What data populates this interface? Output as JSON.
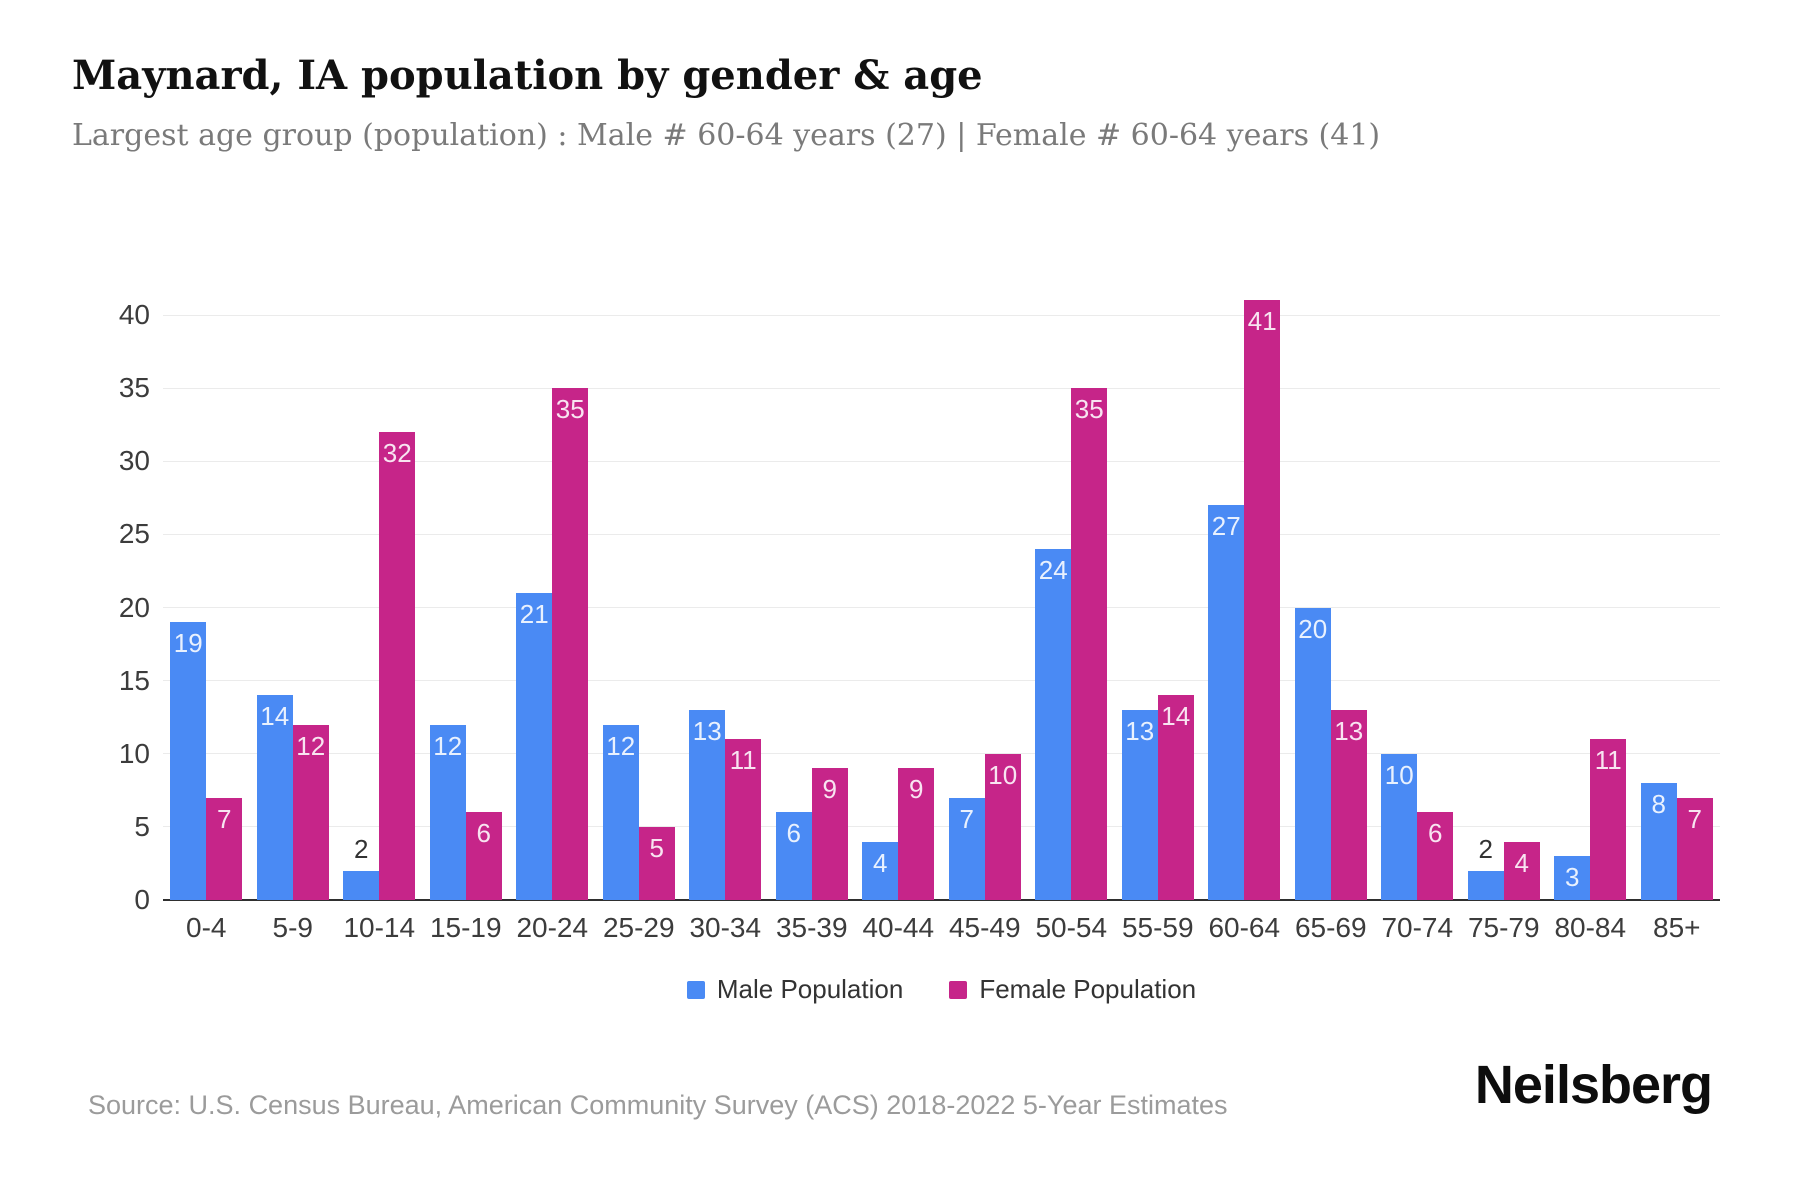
{
  "header": {
    "title": "Maynard, IA population by gender & age",
    "subtitle": "Largest age group (population) : Male # 60-64 years (27) | Female # 60-64 years (41)"
  },
  "chart_data": {
    "type": "bar",
    "title": "Maynard, IA population by gender & age",
    "categories": [
      "0-4",
      "5-9",
      "10-14",
      "15-19",
      "20-24",
      "25-29",
      "30-34",
      "35-39",
      "40-44",
      "45-49",
      "50-54",
      "55-59",
      "60-64",
      "65-69",
      "70-74",
      "75-79",
      "80-84",
      "85+"
    ],
    "series": [
      {
        "name": "Male Population",
        "color": "#4A8AF4",
        "values": [
          19,
          14,
          2,
          12,
          21,
          12,
          13,
          6,
          4,
          7,
          24,
          13,
          27,
          20,
          10,
          2,
          3,
          8
        ]
      },
      {
        "name": "Female Population",
        "color": "#C62589",
        "values": [
          7,
          12,
          32,
          6,
          35,
          5,
          11,
          9,
          9,
          10,
          35,
          14,
          41,
          13,
          6,
          4,
          11,
          7
        ]
      }
    ],
    "xlabel": "",
    "ylabel": "",
    "ylim": [
      0,
      41
    ],
    "yticks": [
      0,
      5,
      10,
      15,
      20,
      25,
      30,
      35,
      40
    ],
    "grid": true,
    "legend_position": "bottom",
    "value_labels": "inside-top, outside when value <= 2"
  },
  "legend": {
    "items": [
      {
        "label": "Male Population",
        "color": "#4A8AF4"
      },
      {
        "label": "Female Population",
        "color": "#C62589"
      }
    ]
  },
  "footer": {
    "source": "Source: U.S. Census Bureau, American Community Survey (ACS) 2018-2022 5-Year Estimates",
    "brand": "Neilsberg"
  },
  "colors": {
    "male": "#4A8AF4",
    "female": "#C62589",
    "gridline": "#ebebeb",
    "axis": "#2f2f2f",
    "title": "#111111",
    "subtitle": "#7a7a7a",
    "ticks": "#3c3c3c",
    "source": "#9b9b9b"
  }
}
